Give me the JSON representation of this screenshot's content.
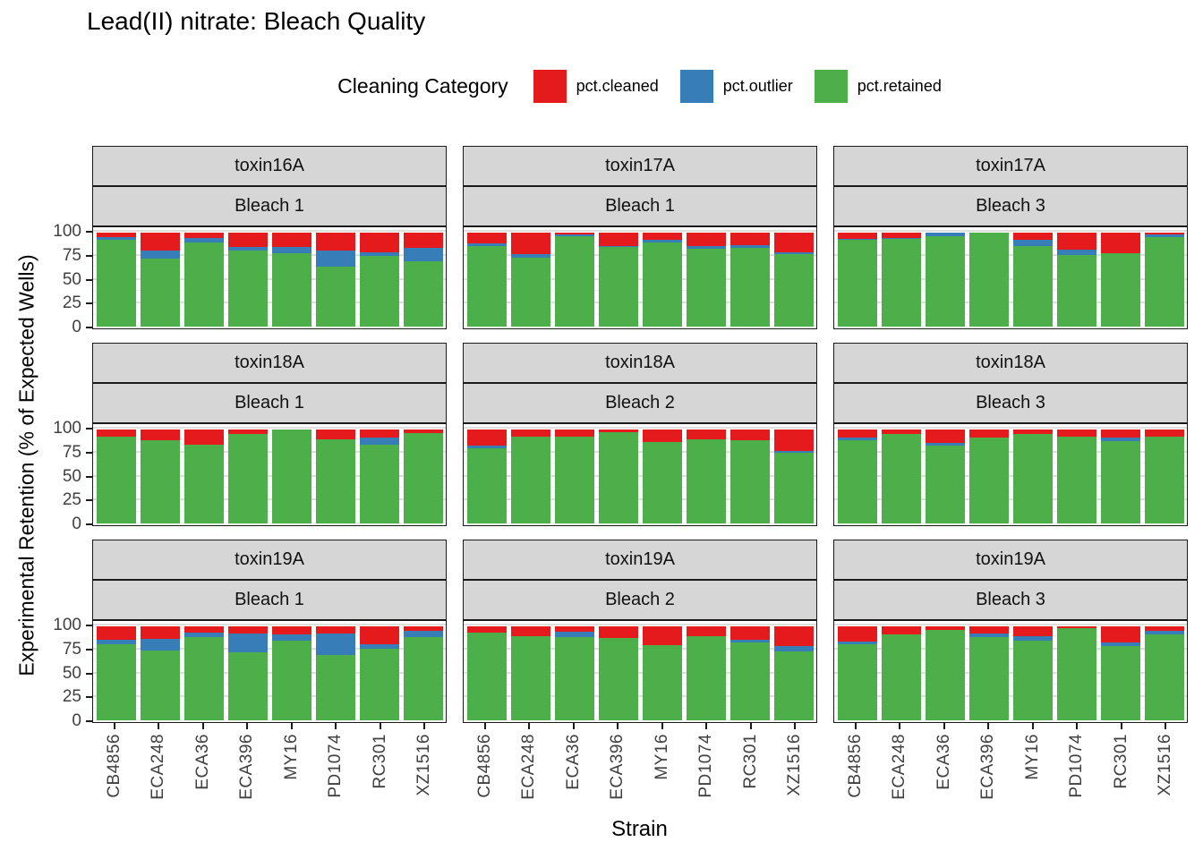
{
  "title": "Lead(II) nitrate: Bleach Quality",
  "legend": {
    "title": "Cleaning Category",
    "entries": [
      {
        "label": "pct.cleaned",
        "color": "#E41A1C",
        "icon": "red-square-swatch"
      },
      {
        "label": "pct.outlier",
        "color": "#377EB8",
        "icon": "blue-square-swatch"
      },
      {
        "label": "pct.retained",
        "color": "#4DAF4A",
        "icon": "green-square-swatch"
      }
    ]
  },
  "axes": {
    "x_label": "Strain",
    "y_label": "Experimental Retention (% of Expected Wells)",
    "y_ticks": [
      0,
      25,
      50,
      75,
      100
    ]
  },
  "chart_data": {
    "type": "bar",
    "stacked": true,
    "stack_order_bottom_to_top": [
      "pct.retained",
      "pct.outlier",
      "pct.cleaned"
    ],
    "colors": {
      "pct.cleaned": "#E41A1C",
      "pct.outlier": "#377EB8",
      "pct.retained": "#4DAF4A"
    },
    "categories": [
      "CB4856",
      "ECA248",
      "ECA36",
      "ECA396",
      "MY16",
      "PD1074",
      "RC301",
      "XZ1516"
    ],
    "ylim": [
      0,
      100
    ],
    "grid": {
      "major": [
        25,
        50,
        75,
        100
      ],
      "minor": [
        12.5,
        37.5,
        62.5,
        87.5
      ]
    },
    "facet_grid": {
      "rows": 3,
      "cols": 3
    },
    "facets": [
      {
        "toxin": "toxin16A",
        "bleach": "Bleach 1",
        "series": [
          {
            "name": "pct.retained",
            "values": [
              92,
              72,
              90,
              81,
              78,
              64,
              75,
              70
            ]
          },
          {
            "name": "pct.outlier",
            "values": [
              3,
              9,
              4,
              4,
              7,
              17,
              4,
              14
            ]
          },
          {
            "name": "pct.cleaned",
            "values": [
              5,
              19,
              6,
              15,
              15,
              19,
              21,
              16
            ]
          }
        ]
      },
      {
        "toxin": "toxin17A",
        "bleach": "Bleach 1",
        "series": [
          {
            "name": "pct.retained",
            "values": [
              86,
              73,
              96,
              85,
              90,
              83,
              84,
              77
            ]
          },
          {
            "name": "pct.outlier",
            "values": [
              3,
              4,
              2,
              1,
              2,
              3,
              3,
              2
            ]
          },
          {
            "name": "pct.cleaned",
            "values": [
              11,
              23,
              2,
              14,
              8,
              14,
              13,
              21
            ]
          }
        ]
      },
      {
        "toxin": "toxin17A",
        "bleach": "Bleach 3",
        "series": [
          {
            "name": "pct.retained",
            "values": [
              92,
              93,
              96,
              100,
              86,
              76,
              78,
              95
            ]
          },
          {
            "name": "pct.outlier",
            "values": [
              1,
              1,
              4,
              0,
              6,
              6,
              0,
              3
            ]
          },
          {
            "name": "pct.cleaned",
            "values": [
              7,
              6,
              0,
              0,
              8,
              18,
              22,
              2
            ]
          }
        ]
      },
      {
        "toxin": "toxin18A",
        "bleach": "Bleach 1",
        "series": [
          {
            "name": "pct.retained",
            "values": [
              92,
              89,
              84,
              95,
              100,
              90,
              84,
              96
            ]
          },
          {
            "name": "pct.outlier",
            "values": [
              0,
              0,
              0,
              0,
              0,
              0,
              7,
              0
            ]
          },
          {
            "name": "pct.cleaned",
            "values": [
              8,
              11,
              16,
              5,
              0,
              10,
              9,
              4
            ]
          }
        ]
      },
      {
        "toxin": "toxin18A",
        "bleach": "Bleach 2",
        "series": [
          {
            "name": "pct.retained",
            "values": [
              80,
              92,
              92,
              97,
              87,
              90,
              89,
              75
            ]
          },
          {
            "name": "pct.outlier",
            "values": [
              3,
              0,
              0,
              0,
              0,
              0,
              0,
              2
            ]
          },
          {
            "name": "pct.cleaned",
            "values": [
              17,
              8,
              8,
              3,
              13,
              10,
              11,
              23
            ]
          }
        ]
      },
      {
        "toxin": "toxin18A",
        "bleach": "Bleach 3",
        "series": [
          {
            "name": "pct.retained",
            "values": [
              89,
              95,
              83,
              91,
              95,
              92,
              88,
              92
            ]
          },
          {
            "name": "pct.outlier",
            "values": [
              2,
              0,
              3,
              0,
              0,
              0,
              3,
              0
            ]
          },
          {
            "name": "pct.cleaned",
            "values": [
              9,
              5,
              14,
              9,
              5,
              8,
              9,
              8
            ]
          }
        ]
      },
      {
        "toxin": "toxin19A",
        "bleach": "Bleach 1",
        "series": [
          {
            "name": "pct.retained",
            "values": [
              81,
              74,
              89,
              72,
              85,
              70,
              76,
              89
            ]
          },
          {
            "name": "pct.outlier",
            "values": [
              5,
              13,
              4,
              20,
              6,
              22,
              5,
              6
            ]
          },
          {
            "name": "pct.cleaned",
            "values": [
              14,
              13,
              7,
              8,
              9,
              8,
              19,
              5
            ]
          }
        ]
      },
      {
        "toxin": "toxin19A",
        "bleach": "Bleach 2",
        "series": [
          {
            "name": "pct.retained",
            "values": [
              93,
              90,
              89,
              88,
              80,
              90,
              83,
              73
            ]
          },
          {
            "name": "pct.outlier",
            "values": [
              0,
              0,
              5,
              0,
              0,
              0,
              3,
              6
            ]
          },
          {
            "name": "pct.cleaned",
            "values": [
              7,
              10,
              6,
              12,
              20,
              10,
              14,
              21
            ]
          }
        ]
      },
      {
        "toxin": "toxin19A",
        "bleach": "Bleach 3",
        "series": [
          {
            "name": "pct.retained",
            "values": [
              81,
              91,
              96,
              89,
              85,
              98,
              79,
              91
            ]
          },
          {
            "name": "pct.outlier",
            "values": [
              3,
              0,
              0,
              3,
              5,
              0,
              4,
              4
            ]
          },
          {
            "name": "pct.cleaned",
            "values": [
              16,
              9,
              4,
              8,
              10,
              2,
              17,
              5
            ]
          }
        ]
      }
    ]
  }
}
